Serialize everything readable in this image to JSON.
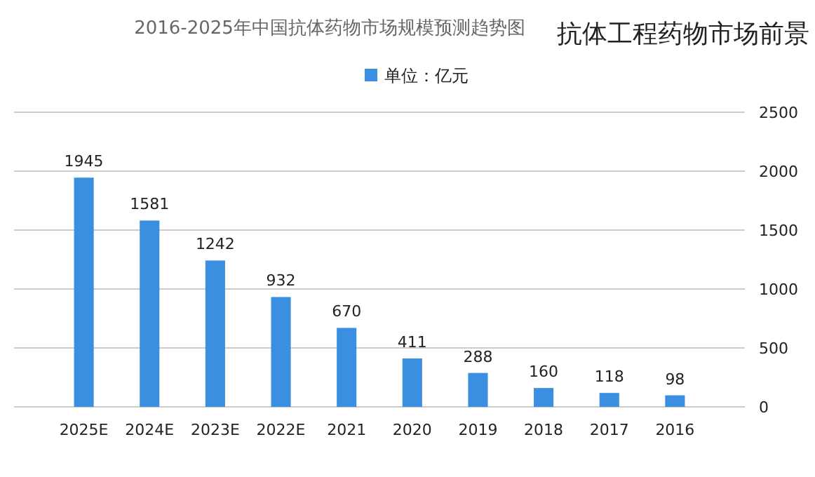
{
  "chart_data": {
    "type": "bar",
    "title": "2016-2025年中国抗体药物市场规模预测趋势图",
    "annotations": [
      "抗体工程药物市场前景"
    ],
    "categories": [
      "2025E",
      "2024E",
      "2023E",
      "2022E",
      "2021",
      "2020",
      "2019",
      "2018",
      "2017",
      "2016"
    ],
    "series": [
      {
        "name": "单位：亿元",
        "color": "#3b8fe0",
        "values": [
          1945,
          1581,
          1242,
          932,
          670,
          411,
          288,
          160,
          118,
          98
        ]
      }
    ],
    "data_labels": true,
    "ylim": [
      0,
      2500
    ],
    "yticks": [
      0,
      500,
      1000,
      1500,
      2000,
      2500
    ],
    "grid": "y",
    "legend": "top"
  }
}
